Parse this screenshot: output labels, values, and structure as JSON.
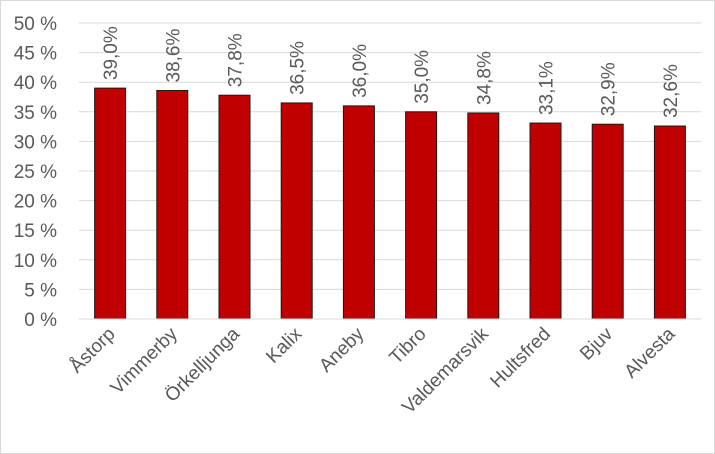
{
  "chart_data": {
    "type": "bar",
    "categories": [
      "Åstorp",
      "Vimmerby",
      "Örkelljunga",
      "Kalix",
      "Aneby",
      "Tibro",
      "Valdemarsvik",
      "Hultsfred",
      "Bjuv",
      "Alvesta"
    ],
    "values": [
      39.0,
      38.6,
      37.8,
      36.5,
      36.0,
      35.0,
      34.8,
      33.1,
      32.9,
      32.6
    ],
    "data_labels": [
      "39,0%",
      "38,6%",
      "37,8%",
      "36,5%",
      "36,0%",
      "35,0%",
      "34,8%",
      "33,1%",
      "32,9%",
      "32,6%"
    ],
    "ylim": [
      0,
      50
    ],
    "yticks": [
      "0 %",
      "5 %",
      "10 %",
      "15 %",
      "20 %",
      "25 %",
      "30 %",
      "35 %",
      "40 %",
      "45 %",
      "50 %"
    ],
    "grid": true,
    "bar_color": "#C00000",
    "bar_edge_color": "#1a1a1a",
    "title": "",
    "xlabel": "",
    "ylabel": ""
  }
}
